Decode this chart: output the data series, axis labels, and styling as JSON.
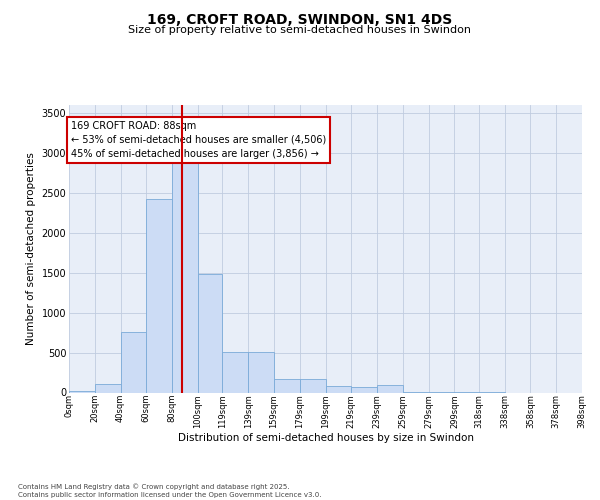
{
  "title_line1": "169, CROFT ROAD, SWINDON, SN1 4DS",
  "title_line2": "Size of property relative to semi-detached houses in Swindon",
  "xlabel": "Distribution of semi-detached houses by size in Swindon",
  "ylabel": "Number of semi-detached properties",
  "footnote": "Contains HM Land Registry data © Crown copyright and database right 2025.\nContains public sector information licensed under the Open Government Licence v3.0.",
  "annotation_line1": "169 CROFT ROAD: 88sqm",
  "annotation_line2": "← 53% of semi-detached houses are smaller (4,506)",
  "annotation_line3": "45% of semi-detached houses are larger (3,856) →",
  "property_size": 88,
  "bar_color": "#ccdcf5",
  "bar_edge_color": "#7aaad8",
  "vline_color": "#cc0000",
  "annotation_box_edge": "#cc0000",
  "background_color": "#e8eef8",
  "grid_color": "#c0cce0",
  "bins": [
    0,
    20,
    40,
    60,
    80,
    100,
    119,
    139,
    159,
    179,
    199,
    219,
    239,
    259,
    279,
    299,
    318,
    338,
    358,
    378,
    398
  ],
  "bin_labels": [
    "0sqm",
    "20sqm",
    "40sqm",
    "60sqm",
    "80sqm",
    "100sqm",
    "119sqm",
    "139sqm",
    "159sqm",
    "179sqm",
    "199sqm",
    "219sqm",
    "239sqm",
    "259sqm",
    "279sqm",
    "299sqm",
    "318sqm",
    "338sqm",
    "358sqm",
    "378sqm",
    "398sqm"
  ],
  "counts": [
    15,
    110,
    760,
    2420,
    2900,
    1490,
    510,
    510,
    175,
    165,
    80,
    75,
    95,
    10,
    5,
    3,
    3,
    0,
    0,
    0
  ],
  "ylim": [
    0,
    3600
  ],
  "yticks": [
    0,
    500,
    1000,
    1500,
    2000,
    2500,
    3000,
    3500
  ],
  "figsize": [
    6.0,
    5.0
  ],
  "dpi": 100
}
